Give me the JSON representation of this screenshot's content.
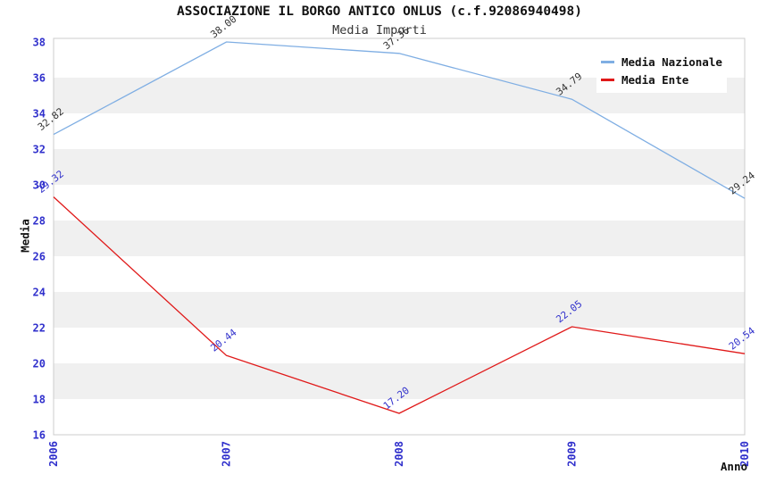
{
  "chart_data": {
    "type": "line",
    "title": "ASSOCIAZIONE IL BORGO ANTICO ONLUS (c.f.92086940498)",
    "subtitle": "Media Importi",
    "categories": [
      "2006",
      "2007",
      "2008",
      "2009",
      "2010"
    ],
    "series": [
      {
        "name": "Media Nazionale",
        "values": [
          32.82,
          38.0,
          37.36,
          34.79,
          29.24
        ],
        "color": "#7FAEE3",
        "label_color": "#333333"
      },
      {
        "name": "Media Ente",
        "values": [
          29.32,
          20.44,
          17.2,
          22.05,
          20.54
        ],
        "color": "#E01919",
        "label_color": "#3333CC"
      }
    ],
    "xlabel": "Anno",
    "ylabel": "Media",
    "ylim": [
      16,
      38.2
    ],
    "yticks": [
      16,
      18,
      20,
      22,
      24,
      26,
      28,
      30,
      32,
      34,
      36,
      38
    ],
    "grid": "alternating-horizontal-bands",
    "legend_position": "top-right",
    "point_label_format": "2-decimals",
    "colors": {
      "tick_label": "#3030CC",
      "band": "#F0F0F0",
      "plot_border": "#CCCCCC",
      "background": "#FFFFFF"
    }
  }
}
